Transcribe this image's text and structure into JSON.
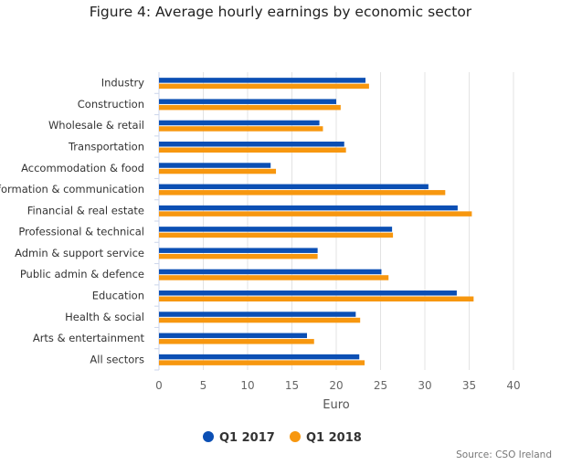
{
  "chart_data": {
    "type": "bar",
    "orientation": "horizontal",
    "title": "Figure 4: Average hourly earnings by economic sector",
    "xlabel": "Euro",
    "ylabel": "",
    "xlim": [
      0,
      40
    ],
    "ticks": [
      "0",
      "5",
      "10",
      "15",
      "20",
      "25",
      "30",
      "35",
      "40"
    ],
    "grid": true,
    "legend_position": "bottom",
    "categories": [
      "Industry",
      "Construction",
      "Wholesale & retail",
      "Transportation",
      "Accommodation & food",
      "Information & communication",
      "Financial & real estate",
      "Professional & technical",
      "Admin & support service",
      "Public admin & defence",
      "Education",
      "Health & social",
      "Arts & entertainment",
      "All sectors"
    ],
    "series": [
      {
        "name": "Q1 2017",
        "color": "#0b4fb4",
        "values": [
          23.3,
          20.0,
          18.1,
          20.9,
          12.6,
          30.4,
          33.7,
          26.3,
          17.9,
          25.1,
          33.6,
          22.2,
          16.7,
          22.6
        ]
      },
      {
        "name": "Q1 2018",
        "color": "#f7970f",
        "values": [
          23.7,
          20.5,
          18.5,
          21.1,
          13.2,
          32.3,
          35.3,
          26.4,
          17.9,
          25.9,
          35.5,
          22.7,
          17.5,
          23.2
        ]
      }
    ],
    "source": "Source: CSO Ireland"
  }
}
